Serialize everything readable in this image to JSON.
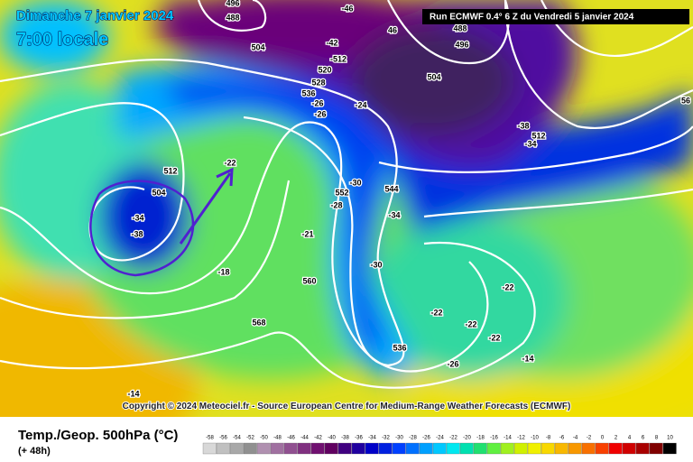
{
  "header": {
    "title": "Dimanche 7 janvier 2024",
    "time": "7:00 locale",
    "run": "Run ECMWF 0.4° 6 Z du Vendredi 5 janvier 2024"
  },
  "map": {
    "labels": [
      "488",
      "496",
      "-46",
      "46",
      "488",
      "496",
      "-42",
      "-512",
      "504",
      "520",
      "528",
      "536",
      "-26",
      "504",
      "-24",
      "-26",
      "-38",
      "512",
      "-34",
      "-22",
      "512",
      "504",
      "-30",
      "544",
      "552",
      "-28",
      "-34",
      "-34",
      "-38",
      "-21",
      "-30",
      "-18",
      "560",
      "-22",
      "-22",
      "568",
      "-22",
      "-22",
      "536",
      "-14",
      "-26",
      "-14",
      "56"
    ],
    "copyright": "Copyright © 2024 Meteociel.fr - Source European Centre for Medium-Range Weather Forecasts (ECMWF)"
  },
  "footer": {
    "parameter": "Temp./Geop. 500hPa (°C)",
    "lead": "(+ 48h)"
  },
  "scale": {
    "labels": [
      -58,
      -56,
      -54,
      -52,
      -50,
      -48,
      -46,
      -44,
      -42,
      -40,
      -38,
      -36,
      -34,
      -32,
      -30,
      -28,
      -26,
      -24,
      -22,
      -20,
      -18,
      -16,
      -14,
      -12,
      -10,
      -8,
      -6,
      -4,
      -2,
      0,
      2,
      4,
      6,
      8,
      10
    ],
    "colors": [
      "#d8d8d8",
      "#c0c0c0",
      "#a8a8a8",
      "#909090",
      "#b090b0",
      "#a070a0",
      "#905090",
      "#803080",
      "#701070",
      "#600060",
      "#400080",
      "#2000a0",
      "#0000c8",
      "#0020e0",
      "#0040ff",
      "#0070ff",
      "#00a0ff",
      "#00c8ff",
      "#00e8f0",
      "#00e0b0",
      "#20e070",
      "#60f040",
      "#a0f020",
      "#d0f000",
      "#f0f000",
      "#f8d800",
      "#f8b800",
      "#f89800",
      "#f87000",
      "#f84000",
      "#f00000",
      "#d00000",
      "#a80000",
      "#800000",
      "#000000"
    ]
  }
}
